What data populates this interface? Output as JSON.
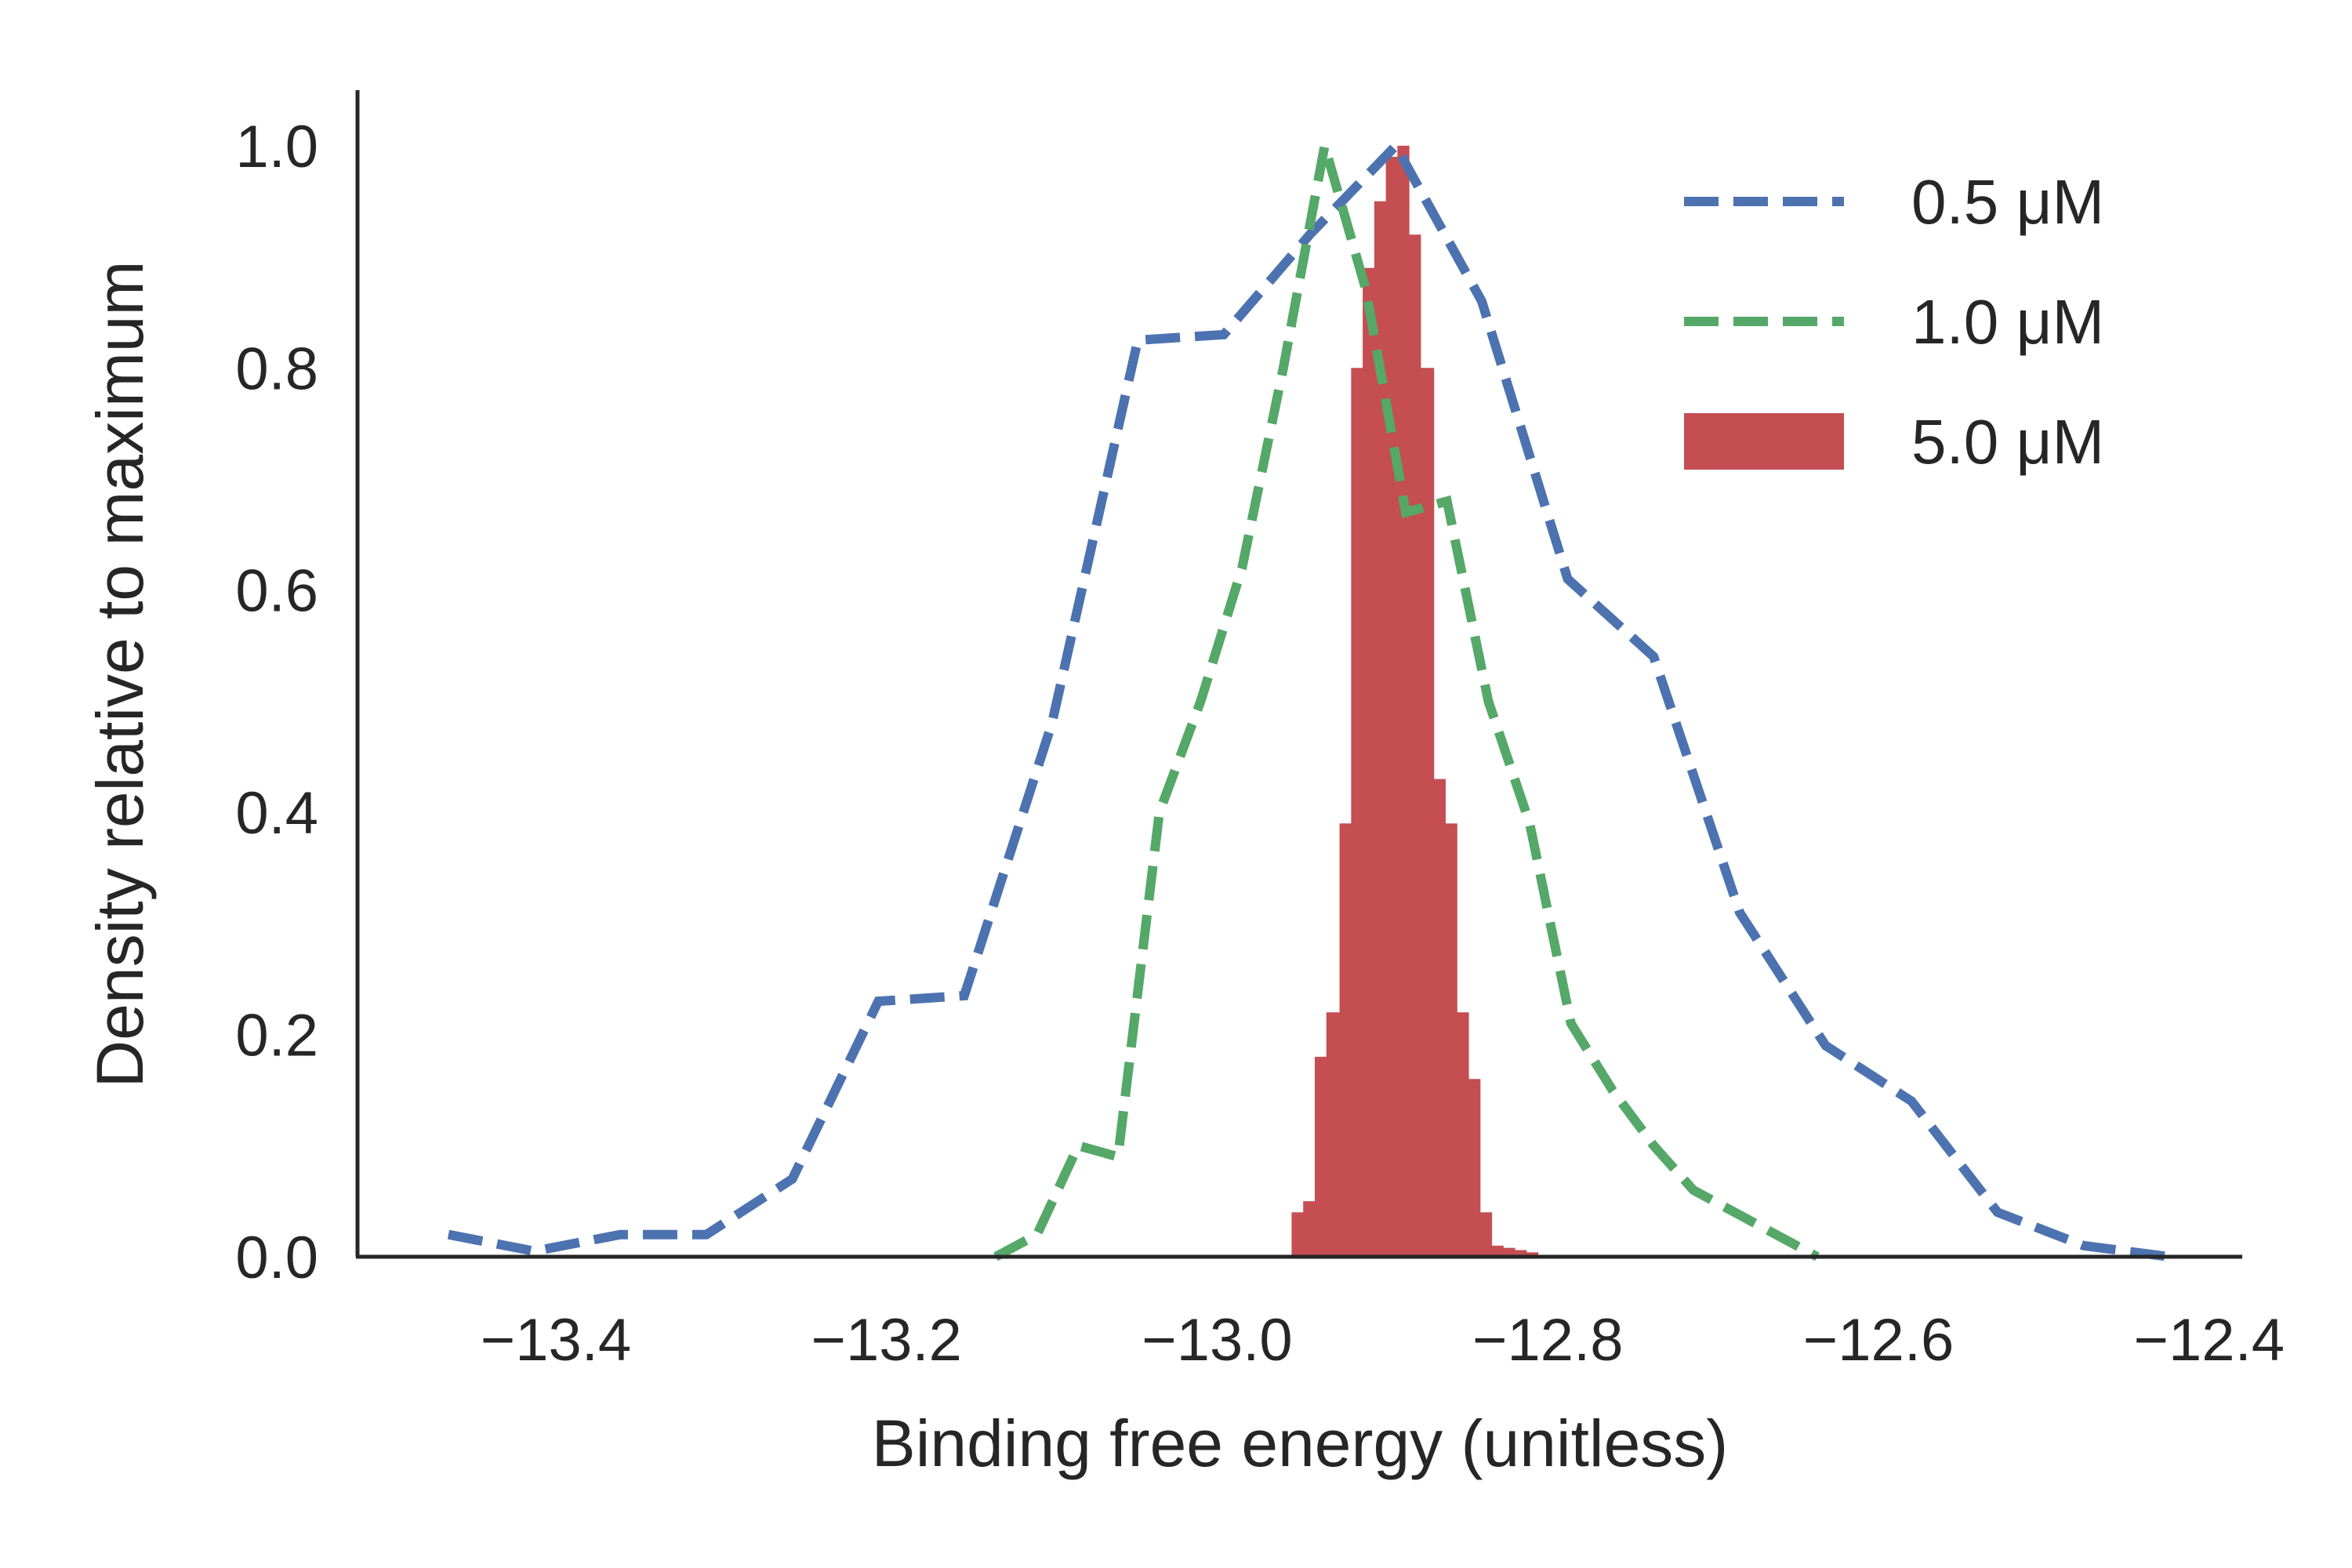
{
  "chart_data": {
    "type": "line",
    "title": "",
    "xlabel": "Binding free energy (unitless)",
    "ylabel": "Density relative to maximum",
    "xlim": [
      -13.52,
      -12.38
    ],
    "ylim": [
      0.0,
      1.05
    ],
    "xticks": [
      -13.4,
      -13.2,
      -13.0,
      -12.8,
      -12.6,
      -12.4
    ],
    "xtick_labels": [
      "−13.4",
      "−13.2",
      "−13.0",
      "−12.8",
      "−12.6",
      "−12.4"
    ],
    "yticks": [
      0.0,
      0.2,
      0.4,
      0.6,
      0.8,
      1.0
    ],
    "ytick_labels": [
      "0.0",
      "0.2",
      "0.4",
      "0.6",
      "0.8",
      "1.0"
    ],
    "grid": false,
    "legend_position": "top-right",
    "series": [
      {
        "name": "0.5 μM",
        "style": "dashed-line",
        "color": "#4c72b0",
        "x": [
          -13.465,
          -13.413,
          -13.361,
          -13.309,
          -13.257,
          -13.205,
          -13.153,
          -13.1,
          -13.048,
          -12.996,
          -12.944,
          -12.892,
          -12.84,
          -12.788,
          -12.736,
          -12.684,
          -12.632,
          -12.58,
          -12.528,
          -12.476,
          -12.424
        ],
        "y": [
          0.02,
          0.005,
          0.02,
          0.02,
          0.07,
          0.23,
          0.235,
          0.48,
          0.825,
          0.83,
          0.92,
          1.0,
          0.86,
          0.61,
          0.54,
          0.31,
          0.19,
          0.14,
          0.04,
          0.01,
          0.0
        ]
      },
      {
        "name": "1.0 μM",
        "style": "dashed-line",
        "color": "#55a868",
        "x": [
          -13.134,
          -13.109,
          -13.084,
          -13.06,
          -13.035,
          -13.01,
          -12.985,
          -12.96,
          -12.935,
          -12.91,
          -12.886,
          -12.861,
          -12.836,
          -12.811,
          -12.786,
          -12.761,
          -12.736,
          -12.712,
          -12.687,
          -12.662,
          -12.637
        ],
        "y": [
          0.0,
          0.02,
          0.1,
          0.09,
          0.4,
          0.5,
          0.62,
          0.8,
          1.0,
          0.87,
          0.67,
          0.68,
          0.5,
          0.39,
          0.21,
          0.15,
          0.1,
          0.06,
          0.04,
          0.02,
          0.0
        ]
      },
      {
        "name": "5.0 μM",
        "style": "histogram",
        "color": "#c44e52",
        "bin_edges": [
          -12.955,
          -12.948,
          -12.941,
          -12.934,
          -12.926,
          -12.919,
          -12.912,
          -12.905,
          -12.898,
          -12.891,
          -12.884,
          -12.877,
          -12.869,
          -12.862,
          -12.855,
          -12.848,
          -12.841,
          -12.834,
          -12.827,
          -12.82,
          -12.813,
          -12.806
        ],
        "values": [
          0.04,
          0.05,
          0.18,
          0.22,
          0.39,
          0.8,
          0.89,
          0.95,
          0.99,
          1.0,
          0.92,
          0.8,
          0.43,
          0.39,
          0.22,
          0.16,
          0.04,
          0.01,
          0.008,
          0.006,
          0.004
        ]
      }
    ]
  },
  "legend": {
    "items": [
      {
        "label": "0.5 μM",
        "color": "#4c72b0",
        "marker": "dashed-line"
      },
      {
        "label": "1.0 μM",
        "color": "#55a868",
        "marker": "dashed-line"
      },
      {
        "label": "5.0 μM",
        "color": "#c44e52",
        "marker": "filled-rect"
      }
    ]
  }
}
